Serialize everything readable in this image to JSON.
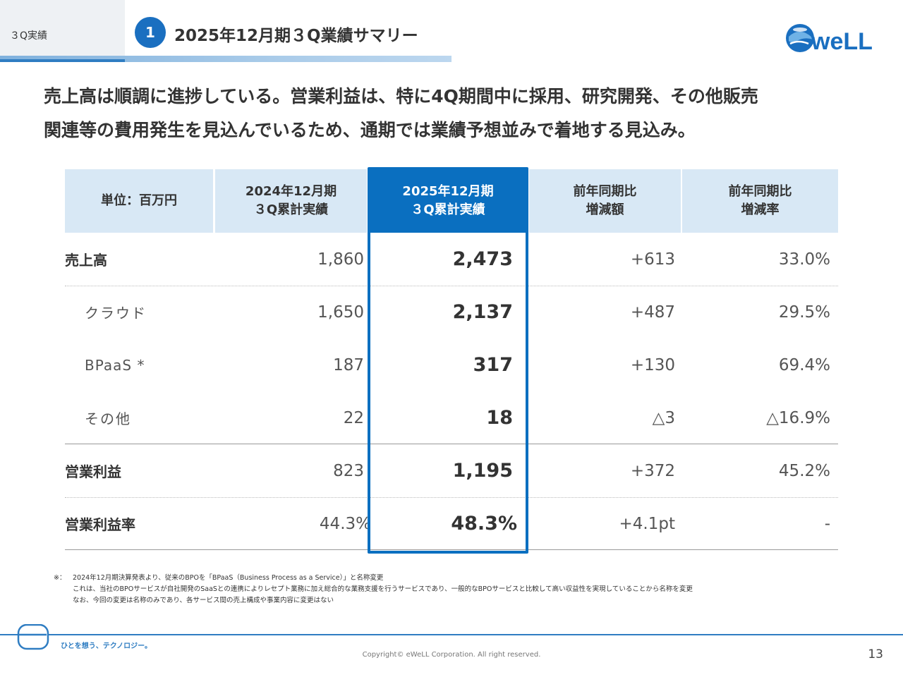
{
  "header": {
    "section_label": "３Q実績",
    "number": "1",
    "title": "2025年12月期３Q業績サマリー",
    "logo_text": "weLL"
  },
  "lead": {
    "line1": "売上高は順調に進捗している。営業利益は、特に4Q期間中に採用、研究開発、その他販売",
    "line2": "関連等の費用発生を見込んでいるため、通期では業績予想並みで着地する見込み。"
  },
  "table": {
    "headers": [
      {
        "line1": "単位：百万円",
        "line2": ""
      },
      {
        "line1": "2024年12月期",
        "line2": "３Q累計実績"
      },
      {
        "line1": "2025年12月期",
        "line2": "３Q累計実績"
      },
      {
        "line1": "前年同期比",
        "line2": "増減額"
      },
      {
        "line1": "前年同期比",
        "line2": "増減率"
      }
    ],
    "rows": [
      {
        "label": "売上高",
        "prev": "1,860",
        "curr": "2,473",
        "diff": "+613",
        "rate": "33.0%"
      },
      {
        "label": "クラウド",
        "prev": "1,650",
        "curr": "2,137",
        "diff": "+487",
        "rate": "29.5%"
      },
      {
        "label": "BPaaS *",
        "prev": "187",
        "curr": "317",
        "diff": "+130",
        "rate": "69.4%"
      },
      {
        "label": "その他",
        "prev": "22",
        "curr": "18",
        "diff": "△3",
        "rate": "△16.9%"
      },
      {
        "label": "営業利益",
        "prev": "823",
        "curr": "1,195",
        "diff": "+372",
        "rate": "45.2%"
      },
      {
        "label": "営業利益率",
        "prev": "44.3%",
        "curr": "48.3%",
        "diff": "+4.1pt",
        "rate": "-"
      }
    ]
  },
  "footnote": {
    "mark": "※：",
    "lines": [
      "2024年12月期決算発表より、従来のBPOを「BPaaS（Business Process as a Service）」と名称変更",
      "これは、当社のBPOサービスが自社開発のSaaSとの連携によりレセプト業務に加え総合的な業務支援を行うサービスであり、一般的なBPOサービスと比較して高い収益性を実現していることから名称を変更",
      "なお、今回の変更は名称のみであり、各サービス間の売上構成や事業内容に変更はない"
    ]
  },
  "footer": {
    "tagline": "ひとを想う、テクノロジー。",
    "copyright": "Copyright© eWeLL Corporation. All right reserved.",
    "page_number": "13"
  },
  "colors": {
    "accent": "#0a6fc0",
    "header_bg": "#d8e8f5",
    "footer_line": "#2f7dc2"
  }
}
